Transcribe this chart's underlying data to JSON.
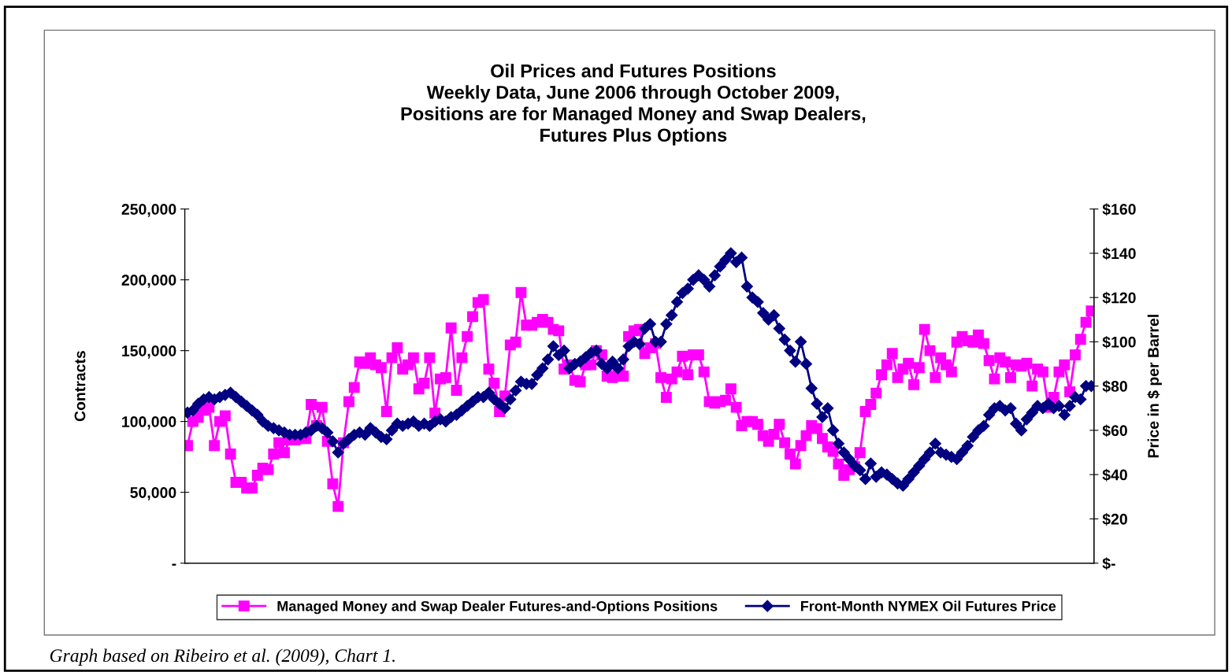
{
  "chart_data": {
    "type": "line",
    "title": "Oil Prices and Futures Positions\nWeekly Data, June 2006 through October 2009,\nPositions are for Managed Money and Swap Dealers,\nFutures Plus Options",
    "ylabel": "Contracts",
    "y2label": "Price in $ per Barrel",
    "annotations": [
      "Graph based on Ribeiro et al. (2009), Chart 1."
    ],
    "categories": [
      null,
      null,
      null,
      null,
      null,
      null,
      null,
      null,
      null,
      null,
      null,
      null,
      null,
      null,
      null,
      null,
      null,
      null,
      null,
      null,
      null,
      null,
      null,
      null,
      null,
      null,
      null,
      null,
      null,
      null,
      null,
      null,
      null,
      null,
      null,
      null,
      null,
      null,
      null,
      null,
      null,
      null,
      null,
      null,
      null,
      null,
      null,
      null,
      null,
      null,
      null,
      null,
      null,
      null,
      null,
      null,
      null,
      null,
      null,
      null,
      null,
      null,
      null,
      null,
      null,
      null,
      null,
      null,
      null,
      null,
      null,
      null,
      null,
      null,
      null,
      null,
      null,
      null,
      null,
      null,
      null,
      null,
      null,
      null,
      null,
      null,
      null,
      null,
      null,
      null,
      null,
      null,
      null,
      null,
      null,
      null,
      null,
      null,
      null,
      null,
      null,
      null,
      null,
      null,
      null,
      null,
      null,
      null,
      null,
      null,
      null,
      null,
      null,
      null,
      null,
      null,
      null,
      null,
      null,
      null,
      null,
      null,
      null,
      null,
      null,
      null,
      null,
      null,
      null,
      null,
      null,
      null,
      null,
      null,
      null,
      null,
      null,
      null,
      null,
      null,
      null,
      null,
      null,
      null,
      null,
      null,
      null,
      null,
      null,
      null,
      null,
      null,
      null,
      null,
      null,
      null,
      null,
      null,
      null,
      null,
      null,
      null,
      null,
      null,
      null,
      null,
      null,
      null,
      null
    ],
    "series": [
      {
        "name": "Managed Money and Swap Dealer Futures-and-Options Positions",
        "color": "#ff00ff",
        "marker": "square",
        "values": [
          83000,
          100000,
          103000,
          108000,
          110000,
          83000,
          100000,
          104000,
          77000,
          57000,
          57000,
          53000,
          53000,
          62000,
          67000,
          66000,
          77000,
          85000,
          78000,
          87000,
          87000,
          88000,
          88000,
          112000,
          97000,
          110000,
          86000,
          56000,
          40000,
          85000,
          114000,
          124000,
          142000,
          141000,
          145000,
          140000,
          138000,
          107000,
          145000,
          152000,
          137000,
          140000,
          145000,
          123000,
          127000,
          145000,
          106000,
          130000,
          131000,
          166000,
          122000,
          145000,
          160000,
          174000,
          184000,
          186000,
          137000,
          127000,
          107000,
          118000,
          154000,
          156000,
          191000,
          168000,
          168000,
          170000,
          172000,
          170000,
          165000,
          164000,
          137000,
          140000,
          129000,
          128000,
          140000,
          140000,
          150000,
          147000,
          132000,
          131000,
          133000,
          132000,
          160000,
          164000,
          165000,
          148000,
          152000,
          155000,
          131000,
          117000,
          130000,
          135000,
          146000,
          133000,
          147000,
          147000,
          135000,
          114000,
          113000,
          114000,
          115000,
          123000,
          110000,
          97000,
          100000,
          100000,
          98000,
          90000,
          86000,
          91000,
          98000,
          85000,
          77000,
          70000,
          83000,
          90000,
          97000,
          95000,
          88000,
          82000,
          79000,
          70000,
          62000,
          66000,
          68000,
          78000,
          107000,
          112000,
          120000,
          133000,
          140000,
          148000,
          131000,
          137000,
          141000,
          126000,
          138000,
          165000,
          150000,
          131000,
          145000,
          140000,
          135000,
          156000,
          160000,
          157000,
          156000,
          161000,
          155000,
          143000,
          130000,
          145000,
          142000,
          131000,
          140000,
          139000,
          141000,
          125000,
          137000,
          135000,
          110000,
          117000,
          135000,
          140000,
          121000,
          147000,
          158000,
          170000,
          178000
        ]
      },
      {
        "name": "Front-Month NYMEX Oil Futures Price",
        "color": "#000080",
        "marker": "diamond",
        "axis": "y2",
        "values": [
          68,
          69,
          72,
          74,
          75,
          74,
          75,
          76,
          77,
          75,
          73,
          71,
          69,
          67,
          64,
          62,
          61,
          60,
          59,
          58,
          58,
          58,
          59,
          60,
          62,
          61,
          59,
          55,
          50,
          54,
          56,
          58,
          59,
          58,
          61,
          59,
          57,
          56,
          60,
          63,
          62,
          63,
          64,
          62,
          63,
          62,
          64,
          65,
          64,
          66,
          67,
          69,
          71,
          73,
          75,
          75,
          77,
          74,
          72,
          70,
          74,
          78,
          82,
          81,
          81,
          85,
          88,
          92,
          98,
          94,
          96,
          88,
          90,
          91,
          93,
          95,
          96,
          90,
          88,
          91,
          88,
          92,
          98,
          100,
          99,
          106,
          108,
          100,
          100,
          108,
          112,
          118,
          122,
          124,
          128,
          130,
          128,
          125,
          130,
          134,
          137,
          140,
          136,
          138,
          125,
          120,
          118,
          113,
          110,
          112,
          106,
          101,
          96,
          91,
          100,
          90,
          79,
          72,
          66,
          70,
          60,
          54,
          50,
          47,
          44,
          42,
          38,
          45,
          39,
          41,
          40,
          38,
          36,
          35,
          38,
          41,
          44,
          47,
          50,
          54,
          50,
          49,
          48,
          47,
          50,
          53,
          57,
          60,
          62,
          67,
          70,
          71,
          69,
          70,
          63,
          60,
          65,
          68,
          71,
          70,
          72,
          70,
          71,
          67,
          71,
          75,
          74,
          80,
          80
        ]
      }
    ],
    "ylim": [
      0,
      250000
    ],
    "yticks": [
      {
        "value": 0,
        "label": "-"
      },
      {
        "value": 50000,
        "label": "50,000"
      },
      {
        "value": 100000,
        "label": "100,000"
      },
      {
        "value": 150000,
        "label": "150,000"
      },
      {
        "value": 200000,
        "label": "200,000"
      },
      {
        "value": 250000,
        "label": "250,000"
      }
    ],
    "y2lim": [
      0,
      160
    ],
    "y2ticks": [
      {
        "value": 0,
        "label": "$-"
      },
      {
        "value": 20,
        "label": "$20"
      },
      {
        "value": 40,
        "label": "$40"
      },
      {
        "value": 60,
        "label": "$60"
      },
      {
        "value": 80,
        "label": "$80"
      },
      {
        "value": 100,
        "label": "$100"
      },
      {
        "value": 120,
        "label": "$120"
      },
      {
        "value": 140,
        "label": "$140"
      },
      {
        "value": 160,
        "label": "$160"
      }
    ],
    "grid": false,
    "legend": "bottom",
    "line_style": "solid"
  }
}
